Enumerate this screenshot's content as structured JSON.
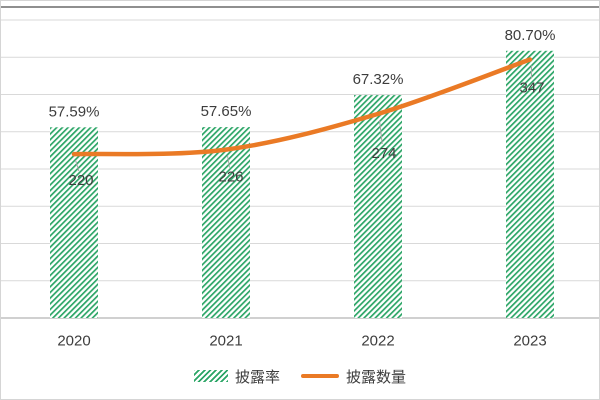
{
  "chart_data": {
    "type": "combo",
    "title": "",
    "categories": [
      "2020",
      "2021",
      "2022",
      "2023"
    ],
    "series": [
      {
        "name": "披露率",
        "type": "bar",
        "axis": "primary",
        "unit": "%",
        "values": [
          57.59,
          57.65,
          67.32,
          80.7
        ],
        "data_labels": [
          "57.59%",
          "57.65%",
          "67.32%",
          "80.70%"
        ],
        "color": "#2BA566",
        "fill_pattern": "thin-diagonal-hatch"
      },
      {
        "name": "披露数量",
        "type": "line",
        "axis": "secondary",
        "values": [
          220,
          226,
          274,
          347
        ],
        "data_labels": [
          "220",
          "226",
          "274",
          "347"
        ],
        "color": "#EA7A25",
        "smooth": true
      }
    ],
    "primary_axis": {
      "min": 0,
      "max": 90,
      "labels_visible": false
    },
    "secondary_axis": {
      "min": 0,
      "max": 400,
      "gridline_step": 50,
      "labels_visible": false
    },
    "gridlines": true,
    "legend_position": "bottom"
  },
  "legend": {
    "items": [
      {
        "label": "披露率",
        "swatch": "green-hatch"
      },
      {
        "label": "披露数量",
        "swatch": "orange-line"
      }
    ]
  },
  "colors": {
    "bar_green": "#2BA566",
    "line_orange": "#EA7A25",
    "gridline": "#D9D9D9",
    "axis_line": "#B3B3B3",
    "text": "#3D3D3D",
    "leader": "#A6A6A6",
    "frame_top": "#8F8F8F",
    "frame_border": "#D5D5D5",
    "background": "#FFFFFF"
  }
}
